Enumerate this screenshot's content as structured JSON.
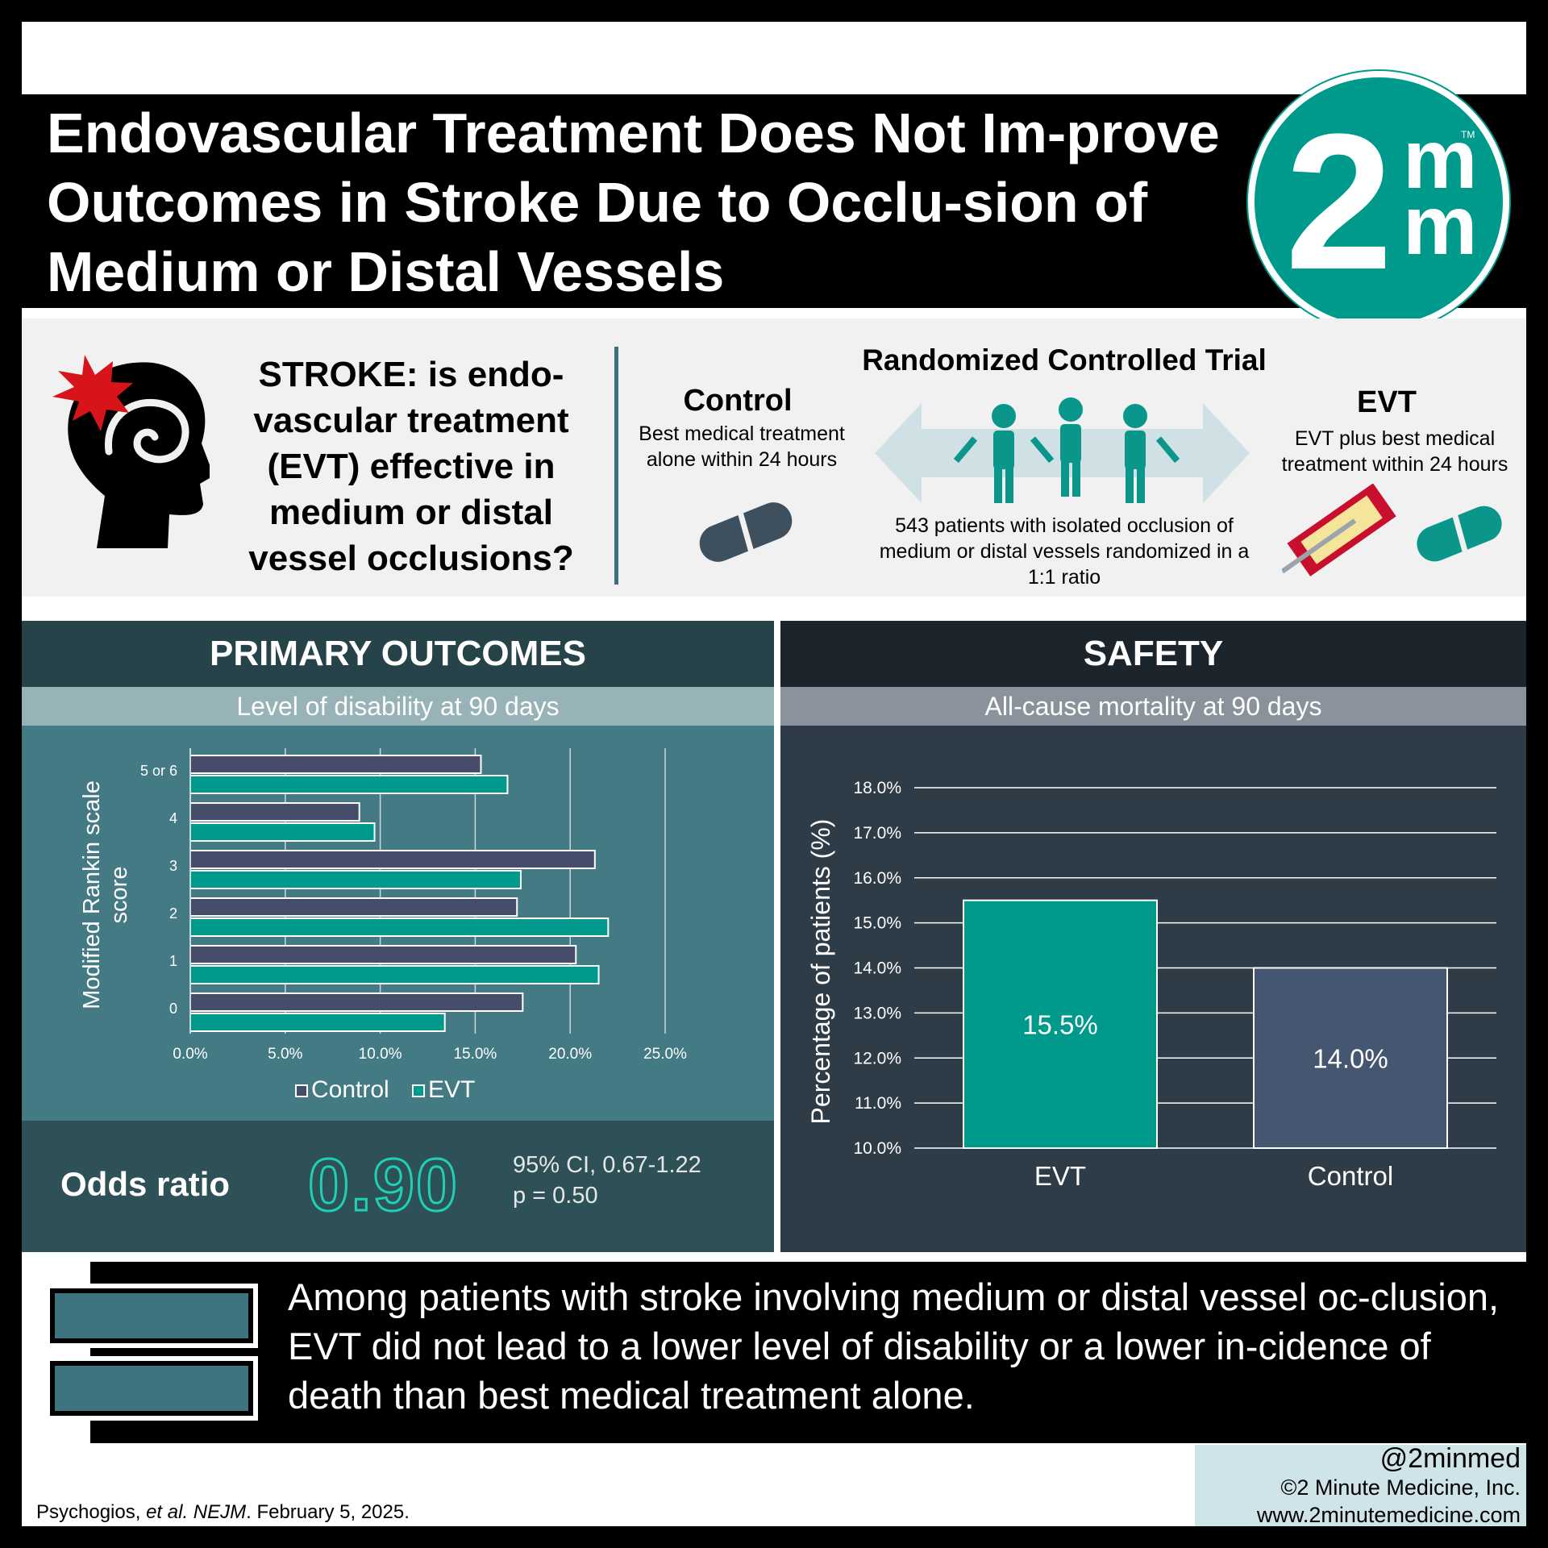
{
  "title": "Endovascular Treatment Does Not Im-prove Outcomes in Stroke Due to Occlu-sion of Medium or Distal Vessels",
  "logo": {
    "big": "2",
    "small_top": "m",
    "small_bottom": "m",
    "tm": "TM"
  },
  "question": "STROKE: is endo-vascular treatment (EVT) effective in medium or distal vessel occlusions?",
  "trial": {
    "title": "Randomized Controlled Trial",
    "control_title": "Control",
    "control_desc": "Best medical treatment alone within 24 hours",
    "evt_title": "EVT",
    "evt_desc": "EVT plus best medical treatment within 24 hours",
    "patients_desc": "543 patients with isolated occlusion of medium or distal vessels randomized in a 1:1 ratio"
  },
  "colors": {
    "teal": "#009a8c",
    "control_bar": "#454d6b",
    "control_safety": "#455770",
    "panel_primary": "#437a84",
    "panel_safety": "#2e3c48"
  },
  "primary": {
    "header": "PRIMARY OUTCOMES",
    "subheader": "Level of disability at 90 days",
    "odds_ratio_label": "Odds ratio",
    "odds_ratio_value": "0.90",
    "ci": "95% CI, 0.67-1.22",
    "p": "p = 0.50"
  },
  "safety": {
    "header": "SAFETY",
    "subheader": "All-cause mortality at 90 days"
  },
  "chart_data": [
    {
      "type": "bar",
      "orientation": "horizontal",
      "categories": [
        "5 or 6",
        "4",
        "3",
        "2",
        "1",
        "0"
      ],
      "series": [
        {
          "name": "Control",
          "values": [
            15.3,
            8.9,
            21.3,
            17.2,
            20.3,
            17.5
          ]
        },
        {
          "name": "EVT",
          "values": [
            16.7,
            9.7,
            17.4,
            22.0,
            21.5,
            13.4
          ]
        }
      ],
      "ylabel": "Modified Rankin scale score",
      "xlabel": "",
      "xlim": [
        0,
        25
      ],
      "xticks": [
        "0.0%",
        "5.0%",
        "10.0%",
        "15.0%",
        "20.0%",
        "25.0%"
      ],
      "grid": true,
      "legend": "bottom"
    },
    {
      "type": "bar",
      "categories": [
        "EVT",
        "Control"
      ],
      "values": [
        15.5,
        14.0
      ],
      "data_labels": [
        "15.5%",
        "14.0%"
      ],
      "ylabel": "Percentage of patients (%)",
      "ylim": [
        10,
        18
      ],
      "yticks": [
        "10.0%",
        "11.0%",
        "12.0%",
        "13.0%",
        "14.0%",
        "15.0%",
        "16.0%",
        "17.0%",
        "18.0%"
      ],
      "grid": true
    }
  ],
  "conclusion": "Among patients with stroke involving medium or distal vessel oc-clusion, EVT did not lead to a lower level of disability or a lower in-cidence of death than best medical treatment alone.",
  "footer": {
    "citation_author": "Psychogios, ",
    "citation_etal": "et al. NEJM",
    "citation_date": ". February 5, 2025.",
    "handle": "@2minmed",
    "copyright": "©2 Minute Medicine, Inc.",
    "url": "www.2minutemedicine.com"
  }
}
